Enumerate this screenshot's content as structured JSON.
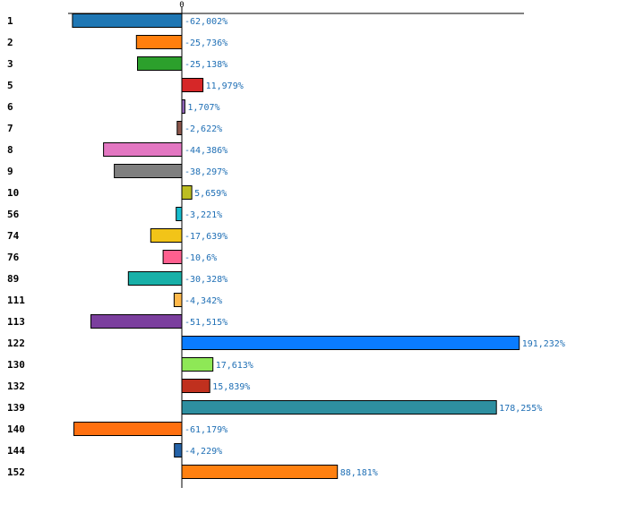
{
  "chart_data": {
    "type": "bar",
    "orientation": "horizontal",
    "title": "",
    "xlabel": "",
    "ylabel": "",
    "zero_tick_label": "0",
    "xlim": [
      -75,
      205
    ],
    "categories": [
      "1",
      "2",
      "3",
      "5",
      "6",
      "7",
      "8",
      "9",
      "10",
      "56",
      "74",
      "76",
      "89",
      "111",
      "113",
      "122",
      "130",
      "132",
      "139",
      "140",
      "144",
      "152"
    ],
    "values": [
      -62.002,
      -25.736,
      -25.138,
      11.979,
      1.707,
      -2.622,
      -44.386,
      -38.297,
      5.659,
      -3.221,
      -17.639,
      -10.6,
      -30.328,
      -4.342,
      -51.515,
      191.232,
      17.613,
      15.839,
      178.255,
      -61.179,
      -4.229,
      88.181
    ],
    "value_labels": [
      "-62,002%",
      "-25,736%",
      "-25,138%",
      "11,979%",
      "1,707%",
      "-2,622%",
      "-44,386%",
      "-38,297%",
      "5,659%",
      "-3,221%",
      "-17,639%",
      "-10,6%",
      "-30,328%",
      "-4,342%",
      "-51,515%",
      "191,232%",
      "17,613%",
      "15,839%",
      "178,255%",
      "-61,179%",
      "-4,229%",
      "88,181%"
    ],
    "colors": [
      "#1f77b4",
      "#ff7f0e",
      "#2ca02c",
      "#d62728",
      "#9467bd",
      "#8c564b",
      "#e377c2",
      "#7f7f7f",
      "#bcbd22",
      "#17becf",
      "#f2c418",
      "#ff5f8f",
      "#18b0a8",
      "#ffb84a",
      "#7b3f9e",
      "#0a7cff",
      "#8ee856",
      "#c0301e",
      "#2e8fa0",
      "#ff7010",
      "#2563a8",
      "#ff8010"
    ]
  }
}
